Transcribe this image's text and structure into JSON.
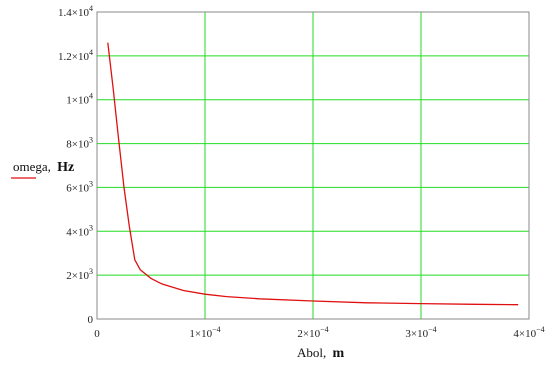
{
  "chart_data": {
    "type": "line",
    "title": "",
    "xlabel": "Abol,",
    "xunit": "m",
    "ylabel": "omega,",
    "yunit": "Hz",
    "xlim": [
      0,
      0.0004
    ],
    "ylim": [
      0,
      14000
    ],
    "grid": true,
    "x_tick_labels": [
      {
        "mantissa": "0",
        "exp": ""
      },
      {
        "mantissa": "1×10",
        "exp": "−4"
      },
      {
        "mantissa": "2×10",
        "exp": "−4"
      },
      {
        "mantissa": "3×10",
        "exp": "−4"
      },
      {
        "mantissa": "4×10",
        "exp": "−4"
      }
    ],
    "y_tick_labels": [
      {
        "mantissa": "0",
        "exp": ""
      },
      {
        "mantissa": "2×10",
        "exp": "3"
      },
      {
        "mantissa": "4×10",
        "exp": "3"
      },
      {
        "mantissa": "6×10",
        "exp": "3"
      },
      {
        "mantissa": "8×10",
        "exp": "3"
      },
      {
        "mantissa": "1×10",
        "exp": "4"
      },
      {
        "mantissa": "1.2×10",
        "exp": "4"
      },
      {
        "mantissa": "1.4×10",
        "exp": "4"
      }
    ],
    "series": [
      {
        "color": "#e01010",
        "x": [
          1e-05,
          1.5e-05,
          2e-05,
          2.5e-05,
          3e-05,
          3.5e-05,
          4e-05,
          5e-05,
          6e-05,
          8e-05,
          0.0001,
          0.00012,
          0.00015,
          0.0002,
          0.00025,
          0.0003,
          0.00035,
          0.00039
        ],
        "y": [
          12600,
          10500,
          8200,
          6000,
          4200,
          2700,
          2250,
          1850,
          1600,
          1300,
          1130,
          1020,
          920,
          820,
          740,
          700,
          670,
          650
        ]
      }
    ],
    "colors": {
      "grid": "#22dd22",
      "frame": "#888888",
      "line": "#e01010"
    }
  }
}
